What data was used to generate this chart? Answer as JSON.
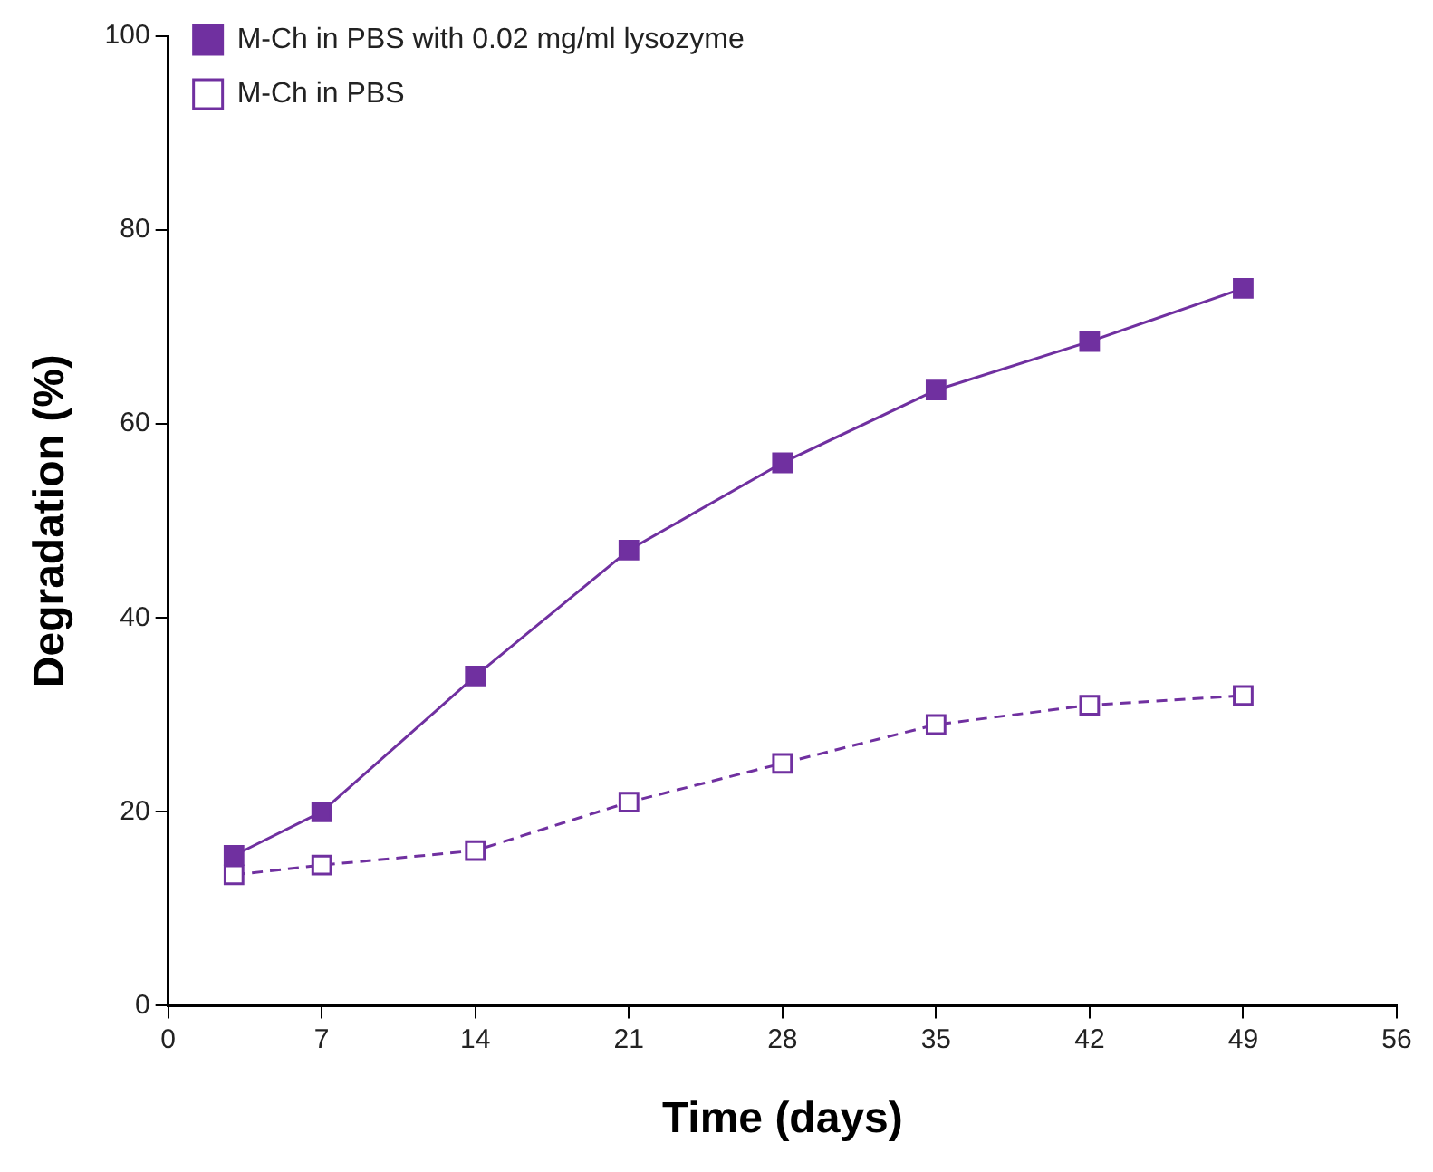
{
  "chart_data": {
    "type": "line",
    "xlabel": "Time (days)",
    "ylabel": "Degradation (%)",
    "x": [
      3,
      7,
      14,
      21,
      28,
      35,
      42,
      49
    ],
    "series": [
      {
        "name": "M-Ch in PBS with 0.02 mg/ml lysozyme",
        "color": "#7030a0",
        "values": [
          15.5,
          20,
          34,
          47,
          56,
          63.5,
          68.5,
          74
        ],
        "marker": "square",
        "line_style": "solid"
      },
      {
        "name": "M-Ch in PBS",
        "color": "#7030a0",
        "values": [
          13.5,
          14.5,
          16,
          21,
          25,
          29,
          31,
          32
        ],
        "marker": "square",
        "line_style": "dashed"
      }
    ],
    "xlim": [
      0,
      56
    ],
    "xticks": [
      0,
      7,
      14,
      21,
      28,
      35,
      42,
      49,
      56
    ],
    "ylim": [
      0,
      100
    ],
    "yticks": [
      0,
      20,
      40,
      60,
      80,
      100
    ],
    "grid": false,
    "legend": "top left"
  }
}
